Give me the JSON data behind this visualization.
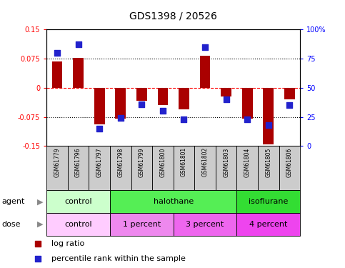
{
  "title": "GDS1398 / 20526",
  "samples": [
    "GSM61779",
    "GSM61796",
    "GSM61797",
    "GSM61798",
    "GSM61799",
    "GSM61800",
    "GSM61801",
    "GSM61802",
    "GSM61803",
    "GSM61804",
    "GSM61805",
    "GSM61806"
  ],
  "log_ratios": [
    0.068,
    0.077,
    -0.095,
    -0.08,
    -0.033,
    -0.045,
    -0.055,
    0.082,
    -0.022,
    -0.08,
    -0.145,
    -0.03
  ],
  "percentile_ranks": [
    80,
    87,
    15,
    24,
    36,
    30,
    23,
    85,
    40,
    23,
    18,
    35
  ],
  "ylim_left": [
    -0.15,
    0.15
  ],
  "ylim_right": [
    0,
    100
  ],
  "yticks_left": [
    -0.15,
    -0.075,
    0,
    0.075,
    0.15
  ],
  "yticks_right": [
    0,
    25,
    50,
    75,
    100
  ],
  "ytick_labels_left": [
    "-0.15",
    "-0.075",
    "0",
    "0.075",
    "0.15"
  ],
  "ytick_labels_right": [
    "0",
    "25",
    "50",
    "75",
    "100%"
  ],
  "bar_color": "#aa0000",
  "dot_color": "#2222cc",
  "agent_groups": [
    {
      "label": "control",
      "start": 0,
      "end": 3,
      "color": "#ccffcc"
    },
    {
      "label": "halothane",
      "start": 3,
      "end": 9,
      "color": "#55ee55"
    },
    {
      "label": "isoflurane",
      "start": 9,
      "end": 12,
      "color": "#33dd33"
    }
  ],
  "dose_groups": [
    {
      "label": "control",
      "start": 0,
      "end": 3,
      "color": "#ffccff"
    },
    {
      "label": "1 percent",
      "start": 3,
      "end": 6,
      "color": "#ee88ee"
    },
    {
      "label": "3 percent",
      "start": 6,
      "end": 9,
      "color": "#ee66ee"
    },
    {
      "label": "4 percent",
      "start": 9,
      "end": 12,
      "color": "#ee44ee"
    }
  ],
  "legend_items": [
    {
      "label": "log ratio",
      "color": "#aa0000"
    },
    {
      "label": "percentile rank within the sample",
      "color": "#2222cc"
    }
  ],
  "hlines_dotted": [
    -0.075,
    0.075
  ],
  "hline_dashed_red": 0.0,
  "bar_width": 0.5,
  "dot_size": 40,
  "sample_box_color": "#cccccc",
  "title_fontsize": 10,
  "axis_fontsize": 7,
  "label_fontsize": 8,
  "legend_fontsize": 8
}
